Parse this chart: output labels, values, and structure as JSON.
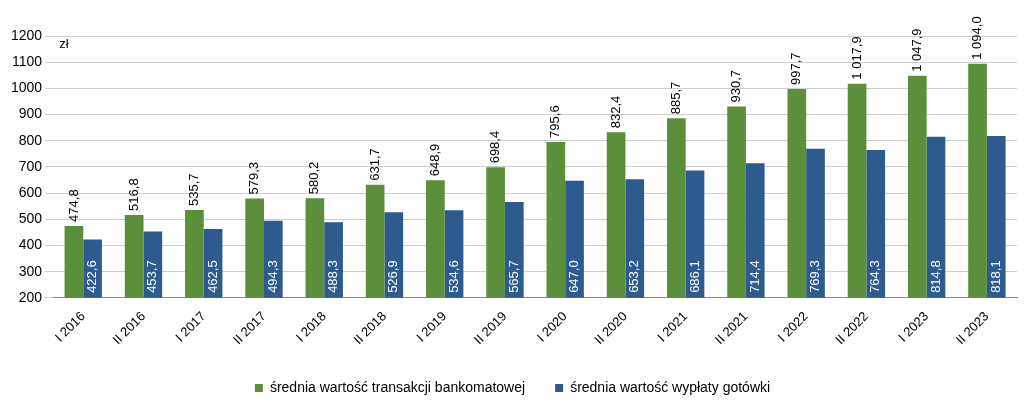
{
  "chart_data": {
    "type": "bar",
    "ylabel": "zł",
    "categories": [
      "I 2016",
      "II 2016",
      "I 2017",
      "II 2017",
      "I 2018",
      "II 2018",
      "I 2019",
      "II 2019",
      "I 2020",
      "II 2020",
      "I 2021",
      "II 2021",
      "I 2022",
      "II 2022",
      "I 2023",
      "II 2023"
    ],
    "series": [
      {
        "name": "średnia wartość transakcji bankomatowej",
        "color": "#5b8f3b",
        "values": [
          474.8,
          516.8,
          535.7,
          579.3,
          580.2,
          631.7,
          648.9,
          698.4,
          795.6,
          832.4,
          885.7,
          930.7,
          997.7,
          1017.9,
          1047.9,
          1094.0
        ],
        "value_labels": [
          "474,8",
          "516,8",
          "535,7",
          "579,3",
          "580,2",
          "631,7",
          "648,9",
          "698,4",
          "795,6",
          "832,4",
          "885,7",
          "930,7",
          "997,7",
          "1 017,9",
          "1 047,9",
          "1 094,0"
        ]
      },
      {
        "name": "średnia wartość wypłaty gotówki",
        "color": "#2e5a8e",
        "values": [
          422.6,
          453.7,
          462.5,
          494.3,
          488.3,
          526.9,
          534.6,
          565.7,
          647.0,
          653.2,
          686.1,
          714.4,
          769.3,
          764.3,
          814.8,
          818.1
        ],
        "value_labels": [
          "422,6",
          "453,7",
          "462,5",
          "494,3",
          "488,3",
          "526,9",
          "534,6",
          "565,7",
          "647,0",
          "653,2",
          "686,1",
          "714,4",
          "769,3",
          "764,3",
          "814,8",
          "818,1"
        ]
      }
    ],
    "ylim": [
      200,
      1200
    ],
    "yticks": [
      200,
      300,
      400,
      500,
      600,
      700,
      800,
      900,
      1000,
      1100,
      1200
    ],
    "grid": "y",
    "legend": "bottom"
  }
}
